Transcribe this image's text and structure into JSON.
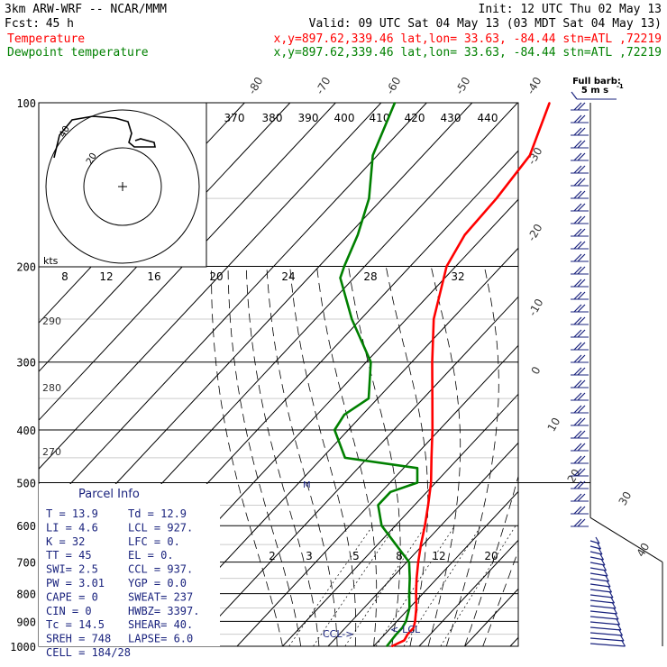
{
  "header": {
    "model": "3km ARW-WRF -- NCAR/MMM",
    "init": "Init: 12 UTC Thu 02 May 13",
    "fcst_label": "Fcst:",
    "fcst_value": "45 h",
    "valid": "Valid: 09 UTC Sat 04 May 13 (03 MDT Sat 04 May 13)"
  },
  "legend": [
    {
      "name": "Temperature",
      "info": "x,y=897.62,339.46   lat,lon= 33.63, -84.44  stn=ATL ,72219",
      "color": "#ff0000"
    },
    {
      "name": "Dewpoint temperature",
      "info": "x,y=897.62,339.46   lat,lon= 33.63, -84.44  stn=ATL ,72219",
      "color": "#008000"
    }
  ],
  "chart_data": {
    "type": "line",
    "title": "",
    "xlabel": "",
    "ylabel": "",
    "y_axis_type": "log-pressure",
    "ylim_hPa": [
      1000,
      100
    ],
    "pressure_ticks": [
      "100",
      "200",
      "300",
      "400",
      "500",
      "600",
      "700",
      "800",
      "900",
      "1000"
    ],
    "isotherm_labels": [
      "-80",
      "-70",
      "-60",
      "-50",
      "-40",
      "-30",
      "-20",
      "-10",
      "0",
      "10",
      "20",
      "30",
      "40"
    ],
    "theta_labels": [
      "370",
      "380",
      "390",
      "400",
      "410",
      "420",
      "430",
      "440"
    ],
    "adiabat_labels": [
      "290",
      "280",
      "270"
    ],
    "mixing_ratio_labels": [
      "2",
      "3",
      "5",
      "8",
      "12",
      "20"
    ],
    "hodograph": {
      "units": "kts",
      "rings_kts": [
        10,
        20
      ],
      "ring_labels": [
        "20",
        "40"
      ],
      "speed_scale": [
        "8",
        "12",
        "16",
        "20",
        "24",
        "28",
        "32"
      ]
    },
    "series": [
      {
        "name": "Temperature",
        "color": "#ff0000",
        "points": [
          {
            "p": 1000,
            "t": 14.0
          },
          {
            "p": 975,
            "t": 15.5
          },
          {
            "p": 950,
            "t": 15.0
          },
          {
            "p": 925,
            "t": 15.0
          },
          {
            "p": 900,
            "t": 14.0
          },
          {
            "p": 850,
            "t": 11.5
          },
          {
            "p": 800,
            "t": 8.5
          },
          {
            "p": 750,
            "t": 5.5
          },
          {
            "p": 700,
            "t": 2.5
          },
          {
            "p": 650,
            "t": -0.5
          },
          {
            "p": 600,
            "t": -3.5
          },
          {
            "p": 550,
            "t": -7.0
          },
          {
            "p": 500,
            "t": -11.0
          },
          {
            "p": 450,
            "t": -16.0
          },
          {
            "p": 400,
            "t": -21.5
          },
          {
            "p": 350,
            "t": -28.0
          },
          {
            "p": 300,
            "t": -35.5
          },
          {
            "p": 250,
            "t": -44.0
          },
          {
            "p": 200,
            "t": -52.0
          },
          {
            "p": 175,
            "t": -54.5
          },
          {
            "p": 150,
            "t": -55.0
          },
          {
            "p": 125,
            "t": -56.5
          },
          {
            "p": 100,
            "t": -63.0
          }
        ]
      },
      {
        "name": "Dewpoint temperature",
        "color": "#008000",
        "points": [
          {
            "p": 1000,
            "t": 12.9
          },
          {
            "p": 950,
            "t": 12.5
          },
          {
            "p": 925,
            "t": 12.5
          },
          {
            "p": 900,
            "t": 12.0
          },
          {
            "p": 850,
            "t": 10.0
          },
          {
            "p": 800,
            "t": 7.0
          },
          {
            "p": 750,
            "t": 4.0
          },
          {
            "p": 700,
            "t": 0.5
          },
          {
            "p": 650,
            "t": -6.0
          },
          {
            "p": 600,
            "t": -13.0
          },
          {
            "p": 550,
            "t": -18.0
          },
          {
            "p": 520,
            "t": -18.0
          },
          {
            "p": 500,
            "t": -14.0
          },
          {
            "p": 470,
            "t": -17.0
          },
          {
            "p": 450,
            "t": -35.0
          },
          {
            "p": 400,
            "t": -43.0
          },
          {
            "p": 375,
            "t": -44.0
          },
          {
            "p": 350,
            "t": -42.0
          },
          {
            "p": 300,
            "t": -49.0
          },
          {
            "p": 250,
            "t": -62.0
          },
          {
            "p": 210,
            "t": -73.0
          },
          {
            "p": 200,
            "t": -74.5
          },
          {
            "p": 175,
            "t": -78.0
          },
          {
            "p": 150,
            "t": -83.0
          },
          {
            "p": 125,
            "t": -91.0
          },
          {
            "p": 100,
            "t": -97.0
          }
        ]
      }
    ],
    "annotations": [
      "CCL->",
      "<-LCL",
      "M"
    ]
  },
  "parcel_info": {
    "title": "Parcel Info",
    "rows": [
      [
        "T  =   13.9",
        "Td =  12.9"
      ],
      [
        "LI =    4.6",
        "LCL =  927."
      ],
      [
        "K  =     32",
        "LFC =    0."
      ],
      [
        "TT =     45",
        "EL  =    0."
      ],
      [
        "SWI=    2.5",
        "CCL =  937."
      ],
      [
        "PW =   3.01",
        "YGP =   0.0"
      ],
      [
        "CAPE =    0",
        "SWEAT=  237"
      ],
      [
        "CIN  =    0",
        "HWBZ= 3397."
      ],
      [
        "Tc =   14.5",
        "SHEAR=  40."
      ],
      [
        "SREH =  748",
        "LAPSE=  6.0"
      ],
      [
        "CELL = 184/28",
        ""
      ]
    ]
  },
  "wind_barb": {
    "title": "Full barb:",
    "value": "5 m s",
    "superscript": "-1"
  }
}
